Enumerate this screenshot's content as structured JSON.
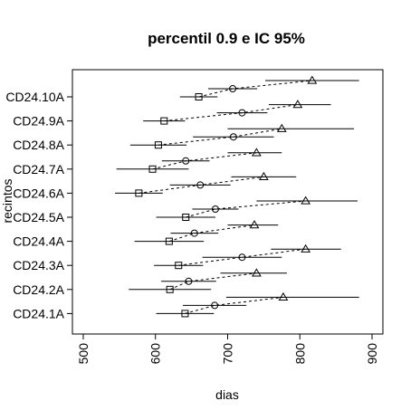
{
  "chart_data": {
    "type": "scatter",
    "title": "percentil 0.9 e IC 95%",
    "xlabel": "dias",
    "ylabel": "recintos",
    "xlim": [
      485,
      915
    ],
    "x_ticks": [
      500,
      600,
      700,
      800,
      900
    ],
    "categories": [
      "CD24.10A",
      "CD24.9A",
      "CD24.8A",
      "CD24.7A",
      "CD24.6A",
      "CD24.5A",
      "CD24.4A",
      "CD24.3A",
      "CD24.2A",
      "CD24.1A"
    ],
    "series": [
      {
        "marker": "square",
        "points": [
          {
            "est": 660,
            "lo": 634,
            "hi": 686
          },
          {
            "est": 612,
            "lo": 583,
            "hi": 641
          },
          {
            "est": 604,
            "lo": 565,
            "hi": 643
          },
          {
            "est": 596,
            "lo": 546,
            "hi": 646
          },
          {
            "est": 577,
            "lo": 544,
            "hi": 610
          },
          {
            "est": 642,
            "lo": 601,
            "hi": 683
          },
          {
            "est": 619,
            "lo": 571,
            "hi": 667
          },
          {
            "est": 632,
            "lo": 598,
            "hi": 666
          },
          {
            "est": 620,
            "lo": 563,
            "hi": 677
          },
          {
            "est": 641,
            "lo": 601,
            "hi": 681
          }
        ]
      },
      {
        "marker": "circle",
        "points": [
          {
            "est": 707,
            "lo": 673,
            "hi": 741
          },
          {
            "est": 720,
            "lo": 685,
            "hi": 755
          },
          {
            "est": 708,
            "lo": 652,
            "hi": 764
          },
          {
            "est": 642,
            "lo": 609,
            "hi": 675
          },
          {
            "est": 662,
            "lo": 620,
            "hi": 704
          },
          {
            "est": 683,
            "lo": 651,
            "hi": 715
          },
          {
            "est": 654,
            "lo": 621,
            "hi": 687
          },
          {
            "est": 720,
            "lo": 665,
            "hi": 775
          },
          {
            "est": 646,
            "lo": 608,
            "hi": 684
          },
          {
            "est": 682,
            "lo": 638,
            "hi": 726
          }
        ]
      },
      {
        "marker": "triangle",
        "points": [
          {
            "est": 817,
            "lo": 752,
            "hi": 882
          },
          {
            "est": 797,
            "lo": 757,
            "hi": 843
          },
          {
            "est": 775,
            "lo": 700,
            "hi": 875
          },
          {
            "est": 740,
            "lo": 700,
            "hi": 775
          },
          {
            "est": 750,
            "lo": 705,
            "hi": 795
          },
          {
            "est": 808,
            "lo": 740,
            "hi": 880
          },
          {
            "est": 737,
            "lo": 700,
            "hi": 770
          },
          {
            "est": 808,
            "lo": 760,
            "hi": 857
          },
          {
            "est": 740,
            "lo": 690,
            "hi": 782
          },
          {
            "est": 777,
            "lo": 698,
            "hi": 882
          }
        ]
      }
    ]
  }
}
